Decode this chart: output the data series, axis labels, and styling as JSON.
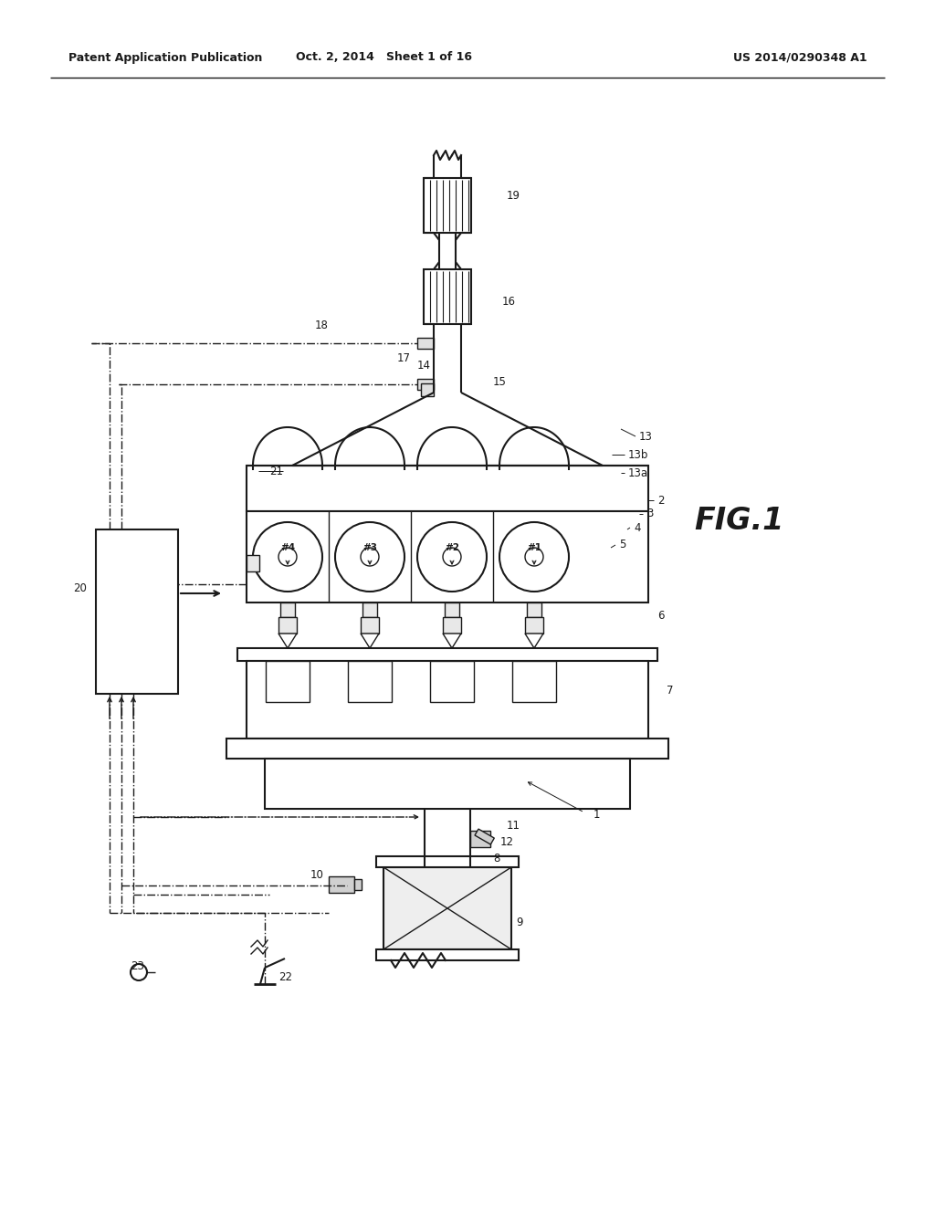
{
  "header_left": "Patent Application Publication",
  "header_mid": "Oct. 2, 2014   Sheet 1 of 16",
  "header_right": "US 2014/0290348 A1",
  "fig_label": "FIG.1",
  "bg_color": "#ffffff",
  "line_color": "#1a1a1a"
}
